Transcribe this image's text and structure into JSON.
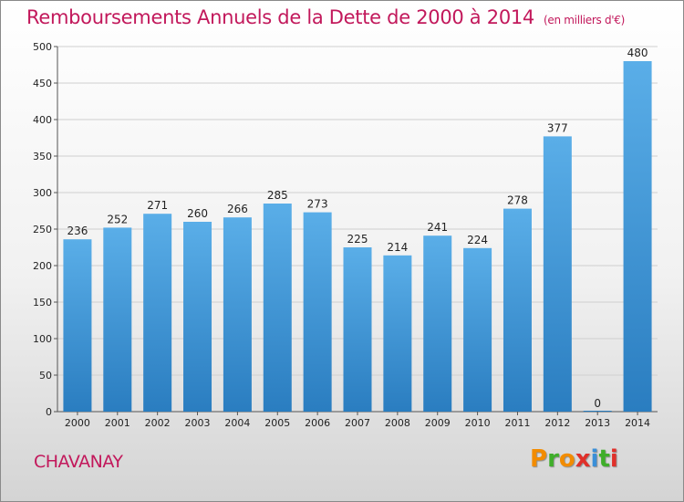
{
  "header": {
    "title": "Remboursements Annuels de la Dette de 2000 à 2014",
    "unit": "(en milliers d'€)"
  },
  "footer": {
    "commune": "CHAVANAY",
    "brand": "Proxiti"
  },
  "colors": {
    "title": "#c2185b",
    "bar_top": "#5aaee8",
    "bar_bottom": "#2a7dc0",
    "grid": "#cfcfcf",
    "brand_letters": [
      "#f28c00",
      "#3fae2a",
      "#f28c00",
      "#e0302a",
      "#3a8fd8",
      "#3fae2a",
      "#e0302a"
    ]
  },
  "chart_data": {
    "type": "bar",
    "title": "Remboursements Annuels de la Dette de 2000 à 2014",
    "xlabel": "",
    "ylabel": "",
    "ylim": [
      0,
      500
    ],
    "yticks": [
      0,
      50,
      100,
      150,
      200,
      250,
      300,
      350,
      400,
      450,
      500
    ],
    "grid": true,
    "categories": [
      "2000",
      "2001",
      "2002",
      "2003",
      "2004",
      "2005",
      "2006",
      "2007",
      "2008",
      "2009",
      "2010",
      "2011",
      "2012",
      "2013",
      "2014"
    ],
    "values": [
      236,
      252,
      271,
      260,
      266,
      285,
      273,
      225,
      214,
      241,
      224,
      278,
      377,
      0,
      480
    ]
  }
}
